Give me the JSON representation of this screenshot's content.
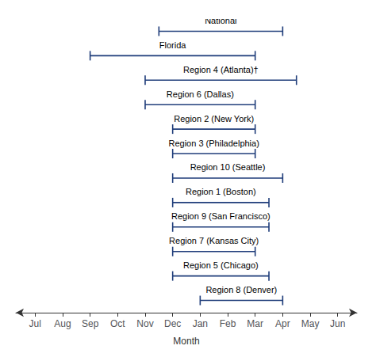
{
  "chart_data": {
    "type": "range",
    "orientation": "horizontal",
    "xlabel": "Month",
    "categories": [
      "National",
      "Florida",
      "Region 4 (Atlanta)†",
      "Region 6 (Dallas)",
      "Region 2 (New York)",
      "Region 3 (Philadelphia)",
      "Region 10 (Seattle)",
      "Region 1 (Boston)",
      "Region 9 (San Francisco)",
      "Region 7 (Kansas City)",
      "Region 5 (Chicago)",
      "Region 8 (Denver)"
    ],
    "start": [
      11.5,
      9.0,
      11.0,
      11.0,
      12.0,
      12.0,
      12.0,
      12.0,
      12.0,
      12.0,
      12.0,
      13.0
    ],
    "end": [
      16.0,
      15.0,
      16.5,
      15.0,
      15.0,
      15.0,
      16.0,
      15.5,
      15.5,
      15.0,
      15.5,
      16.0
    ],
    "color": "#1F3D7A",
    "xlim": [
      6.3,
      18.7
    ],
    "xticks": [
      {
        "value": 7,
        "label": "Jul"
      },
      {
        "value": 8,
        "label": "Aug"
      },
      {
        "value": 9,
        "label": "Sep"
      },
      {
        "value": 10,
        "label": "Oct"
      },
      {
        "value": 11,
        "label": "Nov"
      },
      {
        "value": 12,
        "label": "Dec"
      },
      {
        "value": 13,
        "label": "Jan"
      },
      {
        "value": 14,
        "label": "Feb"
      },
      {
        "value": 15,
        "label": "Mar"
      },
      {
        "value": 16,
        "label": "Apr"
      },
      {
        "value": 17,
        "label": "May"
      },
      {
        "value": 18,
        "label": "Jun"
      }
    ],
    "grid": false,
    "tick_labels": "x"
  }
}
